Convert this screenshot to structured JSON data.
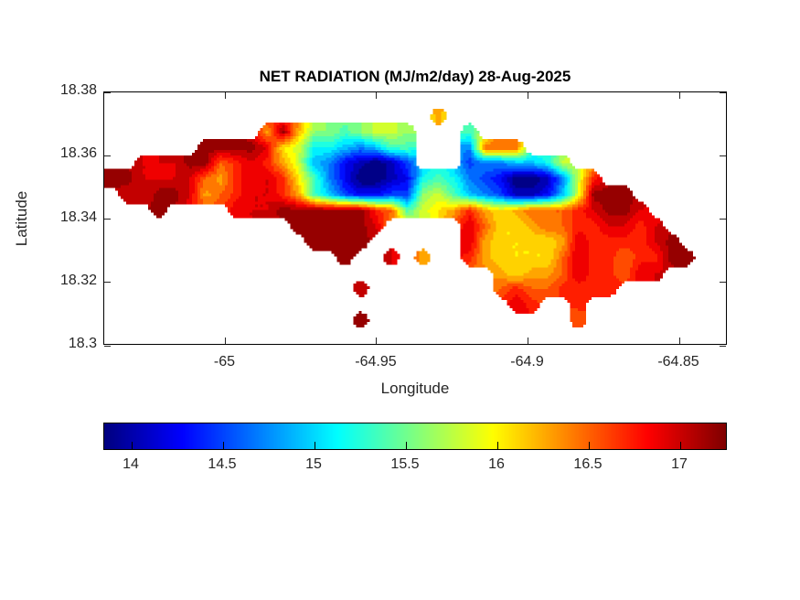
{
  "figure": {
    "title": "NET RADIATION (MJ/m2/day) 28-Aug-2025",
    "xlabel": "Longitude",
    "ylabel": "Latitude"
  },
  "axes": {
    "x_range": [
      -65.04,
      -64.834
    ],
    "y_range": [
      18.3,
      18.38
    ],
    "x_ticks": [
      {
        "value": -65,
        "label": "-65"
      },
      {
        "value": -64.95,
        "label": "-64.95"
      },
      {
        "value": -64.9,
        "label": "-64.9"
      },
      {
        "value": -64.85,
        "label": "-64.85"
      }
    ],
    "y_ticks": [
      {
        "value": 18.38,
        "label": "18.38"
      },
      {
        "value": 18.36,
        "label": "18.36"
      },
      {
        "value": 18.34,
        "label": "18.34"
      },
      {
        "value": 18.32,
        "label": "18.32"
      },
      {
        "value": 18.3,
        "label": "18.3"
      }
    ],
    "tick_color": "#262626",
    "box_color": "#000000"
  },
  "colorbar": {
    "min": 13.85,
    "max": 17.25,
    "colormap": "jet",
    "ticks": [
      {
        "value": 14,
        "label": "14"
      },
      {
        "value": 14.5,
        "label": "14.5"
      },
      {
        "value": 15,
        "label": "15"
      },
      {
        "value": 15.5,
        "label": "15.5"
      },
      {
        "value": 16,
        "label": "16"
      },
      {
        "value": 16.5,
        "label": "16.5"
      },
      {
        "value": 17,
        "label": "17"
      }
    ]
  },
  "chart_data": {
    "type": "filled_contour_map",
    "variable": "NET RADIATION",
    "units": "MJ/m2/day",
    "date": "28-Aug-2025",
    "colormap": "jet",
    "contour_interval": 0.15,
    "value_min": 13.8,
    "value_step": 0.225,
    "value_encoding": "each char is a grid node; '.' = sea, hex digit d => value = value_min + d*value_step (MJ/m2/day)",
    "grid_cols": 40,
    "grid_rows": 16,
    "grid": [
      "........................................",
      ".....................b..................",
      "..........bfb8878998...7................",
      "......ffffea96654577...4ccc.............",
      "..eeeffcdedb95421013...3445569..........",
      "ffeeeecbdeeda742001267643200149d........",
      ".eeffebcdeedb753223389754311259fff......",
      "...f....eeeffffffdc79abdbabcccdeffe.....",
      "............fffffe.....ecaabccddeede....",
      ".............ffff......ebaaaabeddddef...",
      "...............f..e.b..dbaaaaceddcddff..",
      ".........................babbceddcee....",
      "................e........cdccdddd.......",
      "..........................ed..d.........",
      "................f.............c.........",
      "........................................"
    ]
  }
}
